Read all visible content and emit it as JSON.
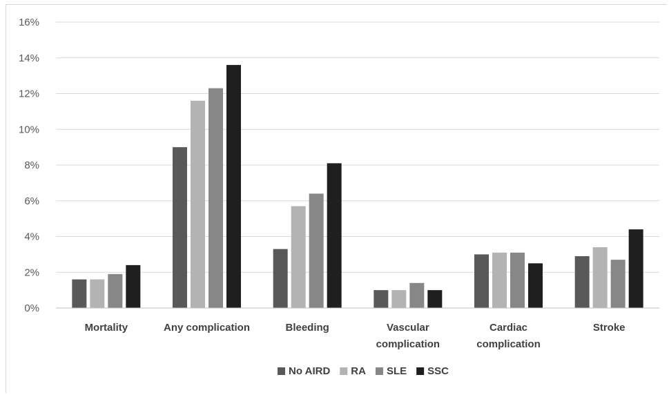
{
  "chart_data": {
    "type": "bar",
    "title": "",
    "xlabel": "",
    "ylabel": "",
    "ylim": [
      0,
      16
    ],
    "y_tick_step": 2,
    "y_tick_format": "percent",
    "grid": true,
    "legend_position": "bottom",
    "categories": [
      [
        "Mortality"
      ],
      [
        "Any complication"
      ],
      [
        "Bleeding"
      ],
      [
        "Vascular",
        "complication"
      ],
      [
        "Cardiac",
        "complication"
      ],
      [
        "Stroke"
      ]
    ],
    "series": [
      {
        "name": "No AIRD",
        "color": "#595959",
        "values": [
          1.6,
          9.0,
          3.3,
          1.0,
          3.0,
          2.9
        ]
      },
      {
        "name": "RA",
        "color": "#b3b3b3",
        "values": [
          1.6,
          11.6,
          5.7,
          1.0,
          3.1,
          3.4
        ]
      },
      {
        "name": "SLE",
        "color": "#878787",
        "values": [
          1.9,
          12.3,
          6.4,
          1.4,
          3.1,
          2.7
        ]
      },
      {
        "name": "SSC",
        "color": "#1f1f1f",
        "values": [
          2.4,
          13.6,
          8.1,
          1.0,
          2.5,
          4.4
        ]
      }
    ]
  }
}
